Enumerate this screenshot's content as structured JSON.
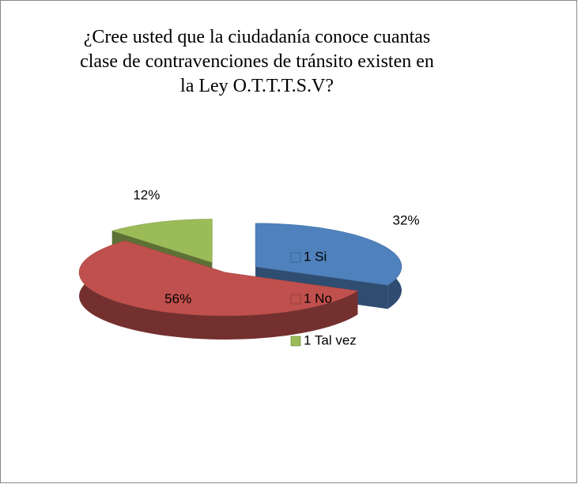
{
  "chart_data": {
    "type": "pie3d",
    "title": "¿Cree usted que la ciudadanía conoce cuantas clase de contravenciones de tránsito existen  en la Ley O.T.T.T.S.V?",
    "categories": [
      "1 Si",
      "1 No",
      "1 Tal vez"
    ],
    "values": [
      32,
      56,
      12
    ],
    "value_labels": [
      "32%",
      "56%",
      "12%"
    ],
    "colors": [
      "#4f81bd",
      "#c0504d",
      "#9bbb59"
    ],
    "legend": "right"
  }
}
